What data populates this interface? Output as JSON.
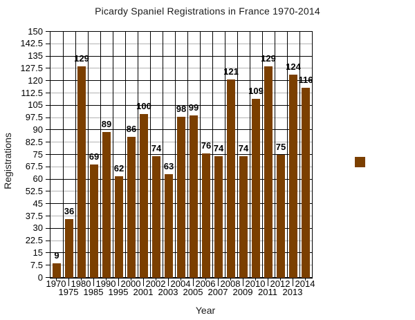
{
  "chart": {
    "title": "Picardy Spaniel Registrations in France 1970-2014",
    "x_axis_title": "Year",
    "y_axis_title": "Registrations"
  },
  "chart_data": {
    "type": "bar",
    "title": "Picardy Spaniel Registrations in France 1970-2014",
    "xlabel": "Year",
    "ylabel": "Registrations",
    "categories": [
      "1970",
      "1975",
      "1980",
      "1985",
      "1990",
      "1995",
      "2000",
      "2001",
      "2002",
      "2003",
      "2004",
      "2005",
      "2006",
      "2007",
      "2008",
      "2009",
      "2010",
      "2011",
      "2012",
      "2013",
      "2014"
    ],
    "values": [
      9,
      36,
      129,
      69,
      89,
      62,
      86,
      100,
      74,
      63,
      98,
      99,
      76,
      74,
      121,
      74,
      109,
      129,
      75,
      124,
      116
    ],
    "value_labels_shown": true,
    "ylim": [
      0,
      150
    ],
    "ytick_step": 7.5,
    "ytick_labels": [
      "0",
      "7.5",
      "15",
      "22.5",
      "30",
      "37.5",
      "45",
      "52.5",
      "60",
      "67.5",
      "75",
      "82.5",
      "90",
      "97.5",
      "105",
      "112.5",
      "120",
      "127.5",
      "135",
      "142.5",
      "150"
    ],
    "grid": true,
    "gridline_style": "major-black-minor-gray",
    "xlabel_layout": "staggered-two-rows",
    "legend_position": "right",
    "legend_label": "",
    "colors": {
      "bar": "#7B3F00",
      "major_grid": "#000000",
      "minor_grid": "#B3B3B3",
      "axis": "#000000",
      "text": "#000000"
    }
  }
}
